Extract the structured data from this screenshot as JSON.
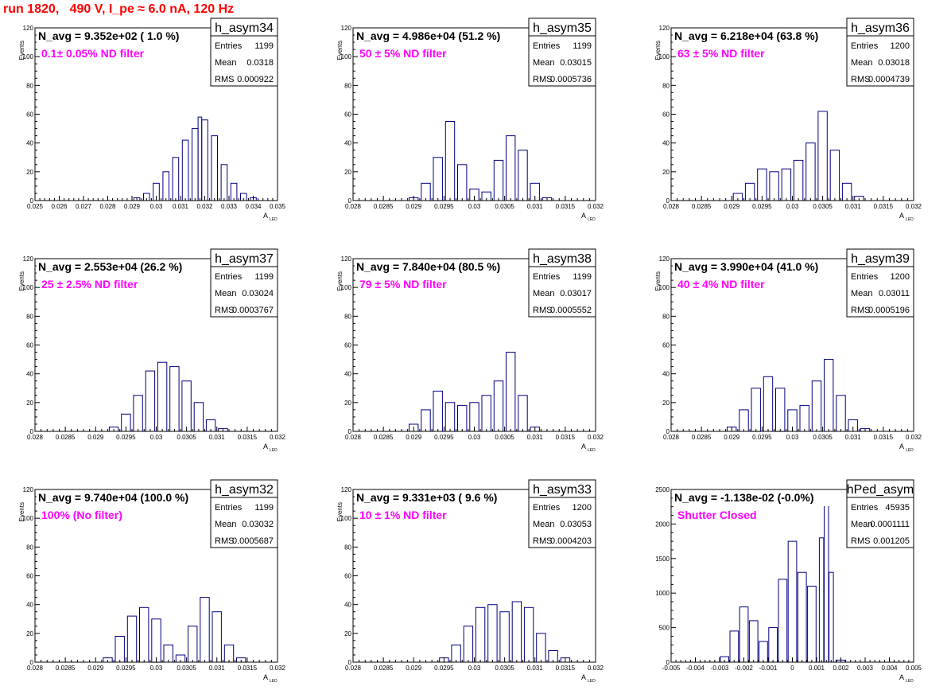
{
  "run_title": "run 1820,   490 V, I_pe ≈ 6.0 nA, 120 Hz",
  "y_axis_label": "Events",
  "x_axis_label_main": "A",
  "x_axis_label_sub": "LED",
  "stats_labels": [
    "Entries",
    "Mean",
    "RMS"
  ],
  "colors": {
    "histogram": "#000080",
    "annotation": "#ff00ff",
    "title": "#ff0000",
    "frame": "#000000"
  },
  "chart_data": [
    {
      "type": "bar",
      "name": "h_asym34",
      "navg": "N_avg = 9.352e+02 ( 1.0 %)",
      "filter": "0.1± 0.05% ND filter",
      "entries": "1199",
      "mean": "0.0318",
      "rms": "0.000922",
      "xlim": [
        0.025,
        0.035
      ],
      "ylim": [
        0,
        120
      ],
      "xticks": [
        0.025,
        0.026,
        0.027,
        0.028,
        0.029,
        0.03,
        0.031,
        0.032,
        0.033,
        0.034,
        0.035
      ],
      "xtick_labels": [
        "0.025",
        "0.026",
        "0.027",
        "0.028",
        "0.029",
        "0.03",
        "0.031",
        "0.032",
        "0.033",
        "0.034",
        "0.035"
      ],
      "yticks": [
        0,
        20,
        40,
        60,
        80,
        100,
        120
      ],
      "ytick_labels": [
        "0",
        "20",
        "40",
        "60",
        "80",
        "100",
        "120"
      ],
      "xlabel": "A LED",
      "ylabel": "Events",
      "centers": [
        0.0292,
        0.0296,
        0.03,
        0.0304,
        0.0308,
        0.0312,
        0.0316,
        0.0318,
        0.032,
        0.0324,
        0.0328,
        0.0332,
        0.0336,
        0.034
      ],
      "heights": [
        2,
        5,
        12,
        20,
        30,
        42,
        50,
        58,
        56,
        45,
        25,
        12,
        5,
        2
      ],
      "widths": [
        0.00025,
        0.00025,
        0.00025,
        0.00025,
        0.00025,
        0.00025,
        0.00025,
        0.00015,
        0.00025,
        0.00025,
        0.00025,
        0.00025,
        0.00025,
        0.00025
      ]
    },
    {
      "type": "bar",
      "name": "h_asym35",
      "navg": "N_avg = 4.986e+04 (51.2 %)",
      "filter": "50 ± 5% ND filter",
      "entries": "1199",
      "mean": "0.03015",
      "rms": "0.0005736",
      "xlim": [
        0.028,
        0.032
      ],
      "ylim": [
        0,
        120
      ],
      "xticks": [
        0.028,
        0.0285,
        0.029,
        0.0295,
        0.03,
        0.0305,
        0.031,
        0.0315,
        0.032
      ],
      "xtick_labels": [
        "0.028",
        "0.0285",
        "0.029",
        "0.0295",
        "0.03",
        "0.0305",
        "0.031",
        "0.0315",
        "0.032"
      ],
      "yticks": [
        0,
        20,
        40,
        60,
        80,
        100,
        120
      ],
      "ytick_labels": [
        "0",
        "20",
        "40",
        "60",
        "80",
        "100",
        "120"
      ],
      "xlabel": "A LED",
      "ylabel": "Events",
      "centers": [
        0.029,
        0.0292,
        0.0294,
        0.0296,
        0.0298,
        0.03,
        0.0302,
        0.0304,
        0.0306,
        0.0308,
        0.031,
        0.0312
      ],
      "heights": [
        2,
        12,
        30,
        55,
        25,
        8,
        6,
        28,
        45,
        35,
        12,
        2
      ],
      "widths": [
        0.00015,
        0.00015,
        0.00015,
        0.00015,
        0.00015,
        0.00015,
        0.00015,
        0.00015,
        0.00015,
        0.00015,
        0.00015,
        0.00015
      ]
    },
    {
      "type": "bar",
      "name": "h_asym36",
      "navg": "N_avg = 6.218e+04 (63.8 %)",
      "filter": "63 ± 5% ND filter",
      "entries": "1200",
      "mean": "0.03018",
      "rms": "0.0004739",
      "xlim": [
        0.028,
        0.032
      ],
      "ylim": [
        0,
        120
      ],
      "xticks": [
        0.028,
        0.0285,
        0.029,
        0.0295,
        0.03,
        0.0305,
        0.031,
        0.0315,
        0.032
      ],
      "xtick_labels": [
        "0.028",
        "0.0285",
        "0.029",
        "0.0295",
        "0.03",
        "0.0305",
        "0.031",
        "0.0315",
        "0.032"
      ],
      "yticks": [
        0,
        20,
        40,
        60,
        80,
        100,
        120
      ],
      "ytick_labels": [
        "0",
        "20",
        "40",
        "60",
        "80",
        "100",
        "120"
      ],
      "xlabel": "A LED",
      "ylabel": "Events",
      "centers": [
        0.0291,
        0.0293,
        0.0295,
        0.0297,
        0.0299,
        0.0301,
        0.0303,
        0.0305,
        0.0307,
        0.0309,
        0.0311
      ],
      "heights": [
        5,
        12,
        22,
        20,
        22,
        28,
        40,
        62,
        35,
        12,
        3
      ],
      "widths": [
        0.00015,
        0.00015,
        0.00015,
        0.00015,
        0.00015,
        0.00015,
        0.00015,
        0.00015,
        0.00015,
        0.00015,
        0.00015
      ]
    },
    {
      "type": "bar",
      "name": "h_asym37",
      "navg": "N_avg = 2.553e+04 (26.2 %)",
      "filter": "25 ± 2.5% ND filter",
      "entries": "1199",
      "mean": "0.03024",
      "rms": "0.0003767",
      "xlim": [
        0.028,
        0.032
      ],
      "ylim": [
        0,
        120
      ],
      "xticks": [
        0.028,
        0.0285,
        0.029,
        0.0295,
        0.03,
        0.0305,
        0.031,
        0.0315,
        0.032
      ],
      "xtick_labels": [
        "0.028",
        "0.0285",
        "0.029",
        "0.0295",
        "0.03",
        "0.0305",
        "0.031",
        "0.0315",
        "0.032"
      ],
      "yticks": [
        0,
        20,
        40,
        60,
        80,
        100,
        120
      ],
      "ytick_labels": [
        "0",
        "20",
        "40",
        "60",
        "80",
        "100",
        "120"
      ],
      "xlabel": "A LED",
      "ylabel": "Events",
      "centers": [
        0.0293,
        0.0295,
        0.0297,
        0.0299,
        0.0301,
        0.0303,
        0.0305,
        0.0307,
        0.0309,
        0.0311
      ],
      "heights": [
        3,
        12,
        25,
        42,
        48,
        45,
        35,
        20,
        8,
        2
      ],
      "widths": [
        0.00015,
        0.00015,
        0.00015,
        0.00015,
        0.00015,
        0.00015,
        0.00015,
        0.00015,
        0.00015,
        0.00015
      ]
    },
    {
      "type": "bar",
      "name": "h_asym38",
      "navg": "N_avg = 7.840e+04 (80.5 %)",
      "filter": "79 ± 5% ND filter",
      "entries": "1199",
      "mean": "0.03017",
      "rms": "0.0005552",
      "xlim": [
        0.028,
        0.032
      ],
      "ylim": [
        0,
        120
      ],
      "xticks": [
        0.028,
        0.0285,
        0.029,
        0.0295,
        0.03,
        0.0305,
        0.031,
        0.0315,
        0.032
      ],
      "xtick_labels": [
        "0.028",
        "0.0285",
        "0.029",
        "0.0295",
        "0.03",
        "0.0305",
        "0.031",
        "0.0315",
        "0.032"
      ],
      "yticks": [
        0,
        20,
        40,
        60,
        80,
        100,
        120
      ],
      "ytick_labels": [
        "0",
        "20",
        "40",
        "60",
        "80",
        "100",
        "120"
      ],
      "xlabel": "A LED",
      "ylabel": "Events",
      "centers": [
        0.029,
        0.0292,
        0.0294,
        0.0296,
        0.0298,
        0.03,
        0.0302,
        0.0304,
        0.0306,
        0.0308,
        0.031
      ],
      "heights": [
        5,
        15,
        28,
        20,
        18,
        20,
        25,
        35,
        55,
        25,
        3
      ],
      "widths": [
        0.00015,
        0.00015,
        0.00015,
        0.00015,
        0.00015,
        0.00015,
        0.00015,
        0.00015,
        0.00015,
        0.00015,
        0.00015
      ]
    },
    {
      "type": "bar",
      "name": "h_asym39",
      "navg": "N_avg = 3.990e+04 (41.0 %)",
      "filter": "40 ± 4% ND filter",
      "entries": "1200",
      "mean": "0.03011",
      "rms": "0.0005196",
      "xlim": [
        0.028,
        0.032
      ],
      "ylim": [
        0,
        120
      ],
      "xticks": [
        0.028,
        0.0285,
        0.029,
        0.0295,
        0.03,
        0.0305,
        0.031,
        0.0315,
        0.032
      ],
      "xtick_labels": [
        "0.028",
        "0.0285",
        "0.029",
        "0.0295",
        "0.03",
        "0.0305",
        "0.031",
        "0.0315",
        "0.032"
      ],
      "yticks": [
        0,
        20,
        40,
        60,
        80,
        100,
        120
      ],
      "ytick_labels": [
        "0",
        "20",
        "40",
        "60",
        "80",
        "100",
        "120"
      ],
      "xlabel": "A LED",
      "ylabel": "Events",
      "centers": [
        0.029,
        0.0292,
        0.0294,
        0.0296,
        0.0298,
        0.03,
        0.0302,
        0.0304,
        0.0306,
        0.0308,
        0.031,
        0.0312
      ],
      "heights": [
        3,
        15,
        30,
        38,
        30,
        15,
        18,
        35,
        50,
        25,
        8,
        2
      ],
      "widths": [
        0.00015,
        0.00015,
        0.00015,
        0.00015,
        0.00015,
        0.00015,
        0.00015,
        0.00015,
        0.00015,
        0.00015,
        0.00015,
        0.00015
      ]
    },
    {
      "type": "bar",
      "name": "h_asym32",
      "navg": "N_avg = 9.740e+04 (100.0 %)",
      "filter": "100% (No filter)",
      "entries": "1199",
      "mean": "0.03032",
      "rms": "0.0005687",
      "xlim": [
        0.028,
        0.032
      ],
      "ylim": [
        0,
        120
      ],
      "xticks": [
        0.028,
        0.0285,
        0.029,
        0.0295,
        0.03,
        0.0305,
        0.031,
        0.0315,
        0.032
      ],
      "xtick_labels": [
        "0.028",
        "0.0285",
        "0.029",
        "0.0295",
        "0.03",
        "0.0305",
        "0.031",
        "0.0315",
        "0.032"
      ],
      "yticks": [
        0,
        20,
        40,
        60,
        80,
        100,
        120
      ],
      "ytick_labels": [
        "0",
        "20",
        "40",
        "60",
        "80",
        "100",
        "120"
      ],
      "xlabel": "A LED",
      "ylabel": "Events",
      "centers": [
        0.0292,
        0.0294,
        0.0296,
        0.0298,
        0.03,
        0.0302,
        0.0304,
        0.0306,
        0.0308,
        0.031,
        0.0312,
        0.0314
      ],
      "heights": [
        3,
        18,
        32,
        38,
        30,
        12,
        5,
        25,
        45,
        35,
        12,
        3
      ],
      "widths": [
        0.00015,
        0.00015,
        0.00015,
        0.00015,
        0.00015,
        0.00015,
        0.00015,
        0.00015,
        0.00015,
        0.00015,
        0.00015,
        0.00015
      ]
    },
    {
      "type": "bar",
      "name": "h_asym33",
      "navg": "N_avg = 9.331e+03 ( 9.6 %)",
      "filter": "10 ± 1% ND filter",
      "entries": "1200",
      "mean": "0.03053",
      "rms": "0.0004203",
      "xlim": [
        0.028,
        0.032
      ],
      "ylim": [
        0,
        120
      ],
      "xticks": [
        0.028,
        0.0285,
        0.029,
        0.0295,
        0.03,
        0.0305,
        0.031,
        0.0315,
        0.032
      ],
      "xtick_labels": [
        "0.028",
        "0.0285",
        "0.029",
        "0.0295",
        "0.03",
        "0.0305",
        "0.031",
        "0.0315",
        "0.032"
      ],
      "yticks": [
        0,
        20,
        40,
        60,
        80,
        100,
        120
      ],
      "ytick_labels": [
        "0",
        "20",
        "40",
        "60",
        "80",
        "100",
        "120"
      ],
      "xlabel": "A LED",
      "ylabel": "Events",
      "centers": [
        0.0295,
        0.0297,
        0.0299,
        0.0301,
        0.0303,
        0.0305,
        0.0307,
        0.0309,
        0.0311,
        0.0313,
        0.0315
      ],
      "heights": [
        3,
        12,
        25,
        38,
        40,
        35,
        42,
        38,
        20,
        8,
        3
      ],
      "widths": [
        0.00015,
        0.00015,
        0.00015,
        0.00015,
        0.00015,
        0.00015,
        0.00015,
        0.00015,
        0.00015,
        0.00015,
        0.00015
      ]
    },
    {
      "type": "bar",
      "name": "hPed_asym",
      "navg": "N_avg = -1.138e-02 (-0.0%)",
      "filter": "Shutter Closed",
      "entries": "45935",
      "mean": "0.0001111",
      "rms": "0.001205",
      "xlim": [
        -0.005,
        0.005
      ],
      "ylim": [
        0,
        2500
      ],
      "xticks": [
        -0.005,
        -0.004,
        -0.003,
        -0.002,
        -0.001,
        0,
        0.001,
        0.002,
        0.003,
        0.004,
        0.005
      ],
      "xtick_labels": [
        "-0.005",
        "-0.004",
        "-0.003",
        "-0.002",
        "-0.001",
        "0",
        "0.001",
        "0.002",
        "0.003",
        "0.004",
        "0.005"
      ],
      "yticks": [
        0,
        500,
        1000,
        1500,
        2000,
        2500
      ],
      "ytick_labels": [
        "0",
        "500",
        "1000",
        "1500",
        "2000",
        "2500"
      ],
      "xlabel": "A LED",
      "ylabel": "",
      "centers": [
        -0.0028,
        -0.0024,
        -0.002,
        -0.0016,
        -0.0012,
        -0.0008,
        -0.0004,
        0,
        0.0004,
        0.0008,
        0.0012,
        0.0014,
        0.0016,
        0.002
      ],
      "heights": [
        80,
        450,
        800,
        600,
        300,
        500,
        1200,
        1750,
        1300,
        1100,
        1800,
        2400,
        1300,
        30
      ],
      "widths": [
        0.00035,
        0.00035,
        0.00035,
        0.00035,
        0.00035,
        0.00035,
        0.00035,
        0.00035,
        0.00035,
        0.00035,
        0.00018,
        0.00018,
        0.00018,
        0.00035
      ]
    }
  ]
}
